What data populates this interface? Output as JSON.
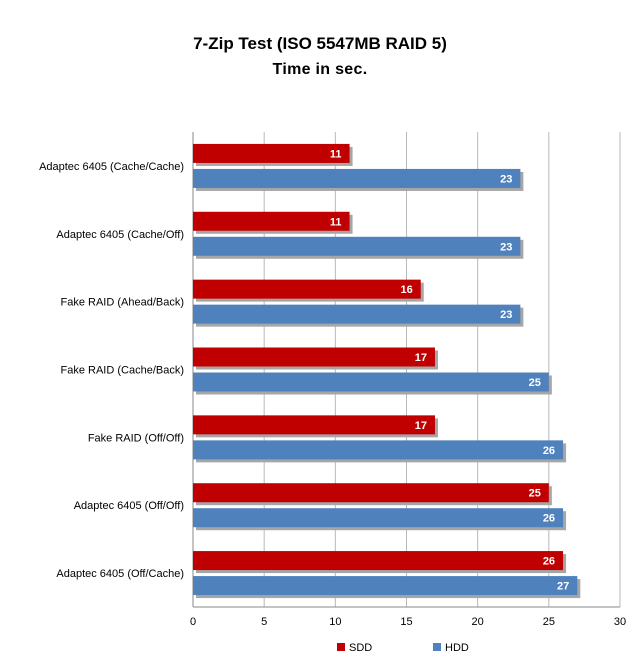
{
  "colors": {
    "series_sdd": "#c00000",
    "series_hdd": "#4f81bd",
    "grid": "#b9b9b9"
  },
  "chart_data": {
    "type": "bar",
    "orientation": "horizontal",
    "title": "7-Zip Test (ISO 5547MB RAID 5)",
    "subtitle": "Time in sec.",
    "categories": [
      "Adaptec 6405 (Cache/Cache)",
      "Adaptec 6405 (Cache/Off)",
      "Fake RAID (Ahead/Back)",
      "Fake RAID (Cache/Back)",
      "Fake RAID (Off/Off)",
      "Adaptec 6405  (Off/Off)",
      "Adaptec 6405 (Off/Cache)"
    ],
    "series": [
      {
        "name": "SDD",
        "values": [
          11,
          11,
          16,
          17,
          17,
          25,
          26
        ]
      },
      {
        "name": "HDD",
        "values": [
          23,
          23,
          23,
          25,
          26,
          26,
          27
        ]
      }
    ],
    "xlim": [
      0,
      30
    ],
    "xticks": [
      0,
      5,
      10,
      15,
      20,
      25,
      30
    ],
    "grid": true,
    "legend_position": "bottom"
  }
}
